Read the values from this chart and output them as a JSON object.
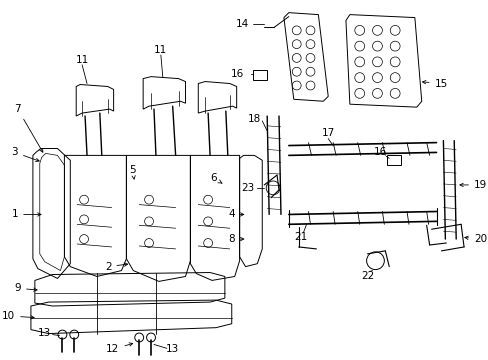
{
  "bg_color": "#ffffff",
  "lc": "#000000",
  "lw": 0.7,
  "fs": 7.5,
  "figsize": [
    4.89,
    3.6
  ],
  "dpi": 100,
  "xlim": [
    0,
    489
  ],
  "ylim": [
    0,
    360
  ]
}
